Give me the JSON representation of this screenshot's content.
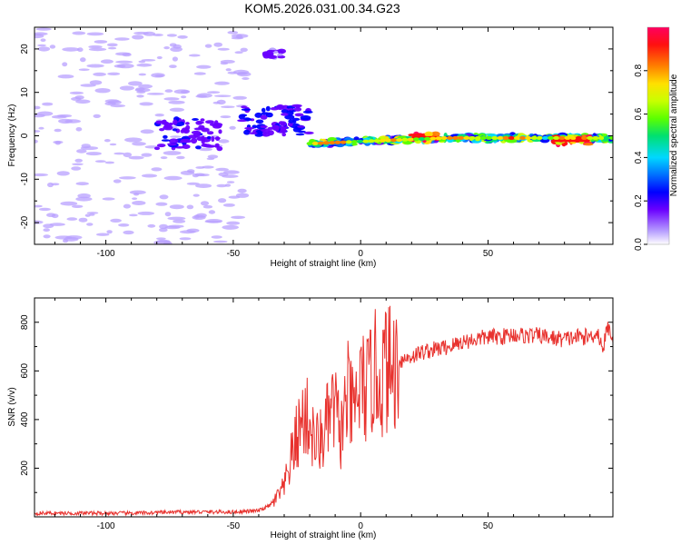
{
  "title": "KOM5.2026.031.00.34.G23",
  "colors": {
    "snr_line": "#e8322e",
    "axis": "#000000",
    "colormap": [
      "#b8a0ff",
      "#6a00ff",
      "#0000ff",
      "#0070ff",
      "#00d8ff",
      "#00e070",
      "#5cff00",
      "#c8ff00",
      "#ffe000",
      "#ff8000",
      "#ff1010",
      "#ff0060"
    ]
  },
  "chart_data": [
    {
      "type": "heatmap",
      "title": "KOM5.2026.031.00.34.G23",
      "xlabel": "Height of straight line (km)",
      "ylabel": "Frequency (Hz)",
      "xlim": [
        -128,
        99
      ],
      "ylim": [
        -25,
        25
      ],
      "x_ticks": [
        -100,
        -50,
        0,
        50
      ],
      "x_tick_labels": [
        "-100",
        "-50",
        "0",
        "50"
      ],
      "y_ticks": [
        -20,
        -10,
        0,
        10,
        20
      ],
      "y_tick_labels": [
        "-20",
        "-10",
        "0",
        "10",
        "20"
      ],
      "colorbar": {
        "label": "Normalized spectral amplitude",
        "range": [
          0,
          1
        ],
        "ticks": [
          0.0,
          0.2,
          0.4,
          0.6,
          0.8
        ],
        "tick_labels": [
          "0.0",
          "0.2",
          "0.4",
          "0.6",
          "0.8"
        ]
      },
      "features": [
        {
          "x_range": [
            -128,
            -45
          ],
          "freq_range": [
            -25,
            25
          ],
          "amplitude": 0.02,
          "note": "scattered noise"
        },
        {
          "x_range": [
            -80,
            -55
          ],
          "freq_range": [
            -3,
            4
          ],
          "amplitude": 0.12
        },
        {
          "x_range": [
            -47,
            -20
          ],
          "freq_range": [
            0,
            7
          ],
          "amplitude": 0.15
        },
        {
          "x": -34,
          "freq": 19,
          "amplitude": 0.06
        },
        {
          "x_range": [
            -20,
            99
          ],
          "freq_range": [
            -2,
            1
          ],
          "amplitude": 0.5,
          "note": "carrier trace"
        },
        {
          "x_range": [
            20,
            30
          ],
          "freq": -0.5,
          "amplitude": 0.9
        },
        {
          "x_range": [
            75,
            90
          ],
          "freq": -1,
          "amplitude": 0.9
        }
      ]
    },
    {
      "type": "line",
      "xlabel": "Height of straight line (km)",
      "ylabel": "SNR (v/v)",
      "xlim": [
        -128,
        99
      ],
      "ylim": [
        0,
        900
      ],
      "x_ticks": [
        -100,
        -50,
        0,
        50
      ],
      "x_tick_labels": [
        "-100",
        "-50",
        "0",
        "50"
      ],
      "y_ticks": [
        200,
        400,
        600,
        800
      ],
      "y_tick_labels": [
        "200",
        "400",
        "600",
        "800"
      ],
      "series": [
        {
          "name": "SNR",
          "x": [
            -128,
            -110,
            -90,
            -70,
            -50,
            -40,
            -35,
            -30,
            -27,
            -25,
            -22,
            -20,
            -18,
            -15,
            -12,
            -10,
            -8,
            -5,
            -3,
            0,
            3,
            5,
            8,
            10,
            12,
            15,
            20,
            25,
            30,
            35,
            40,
            45,
            50,
            55,
            60,
            65,
            70,
            75,
            80,
            85,
            90,
            93,
            95,
            97,
            99
          ],
          "y": [
            15,
            15,
            15,
            20,
            20,
            25,
            50,
            120,
            250,
            330,
            420,
            380,
            300,
            320,
            420,
            450,
            330,
            500,
            420,
            540,
            520,
            600,
            560,
            620,
            600,
            640,
            660,
            680,
            690,
            700,
            720,
            730,
            740,
            740,
            750,
            745,
            745,
            735,
            730,
            740,
            740,
            760,
            690,
            780,
            740
          ]
        }
      ]
    }
  ]
}
